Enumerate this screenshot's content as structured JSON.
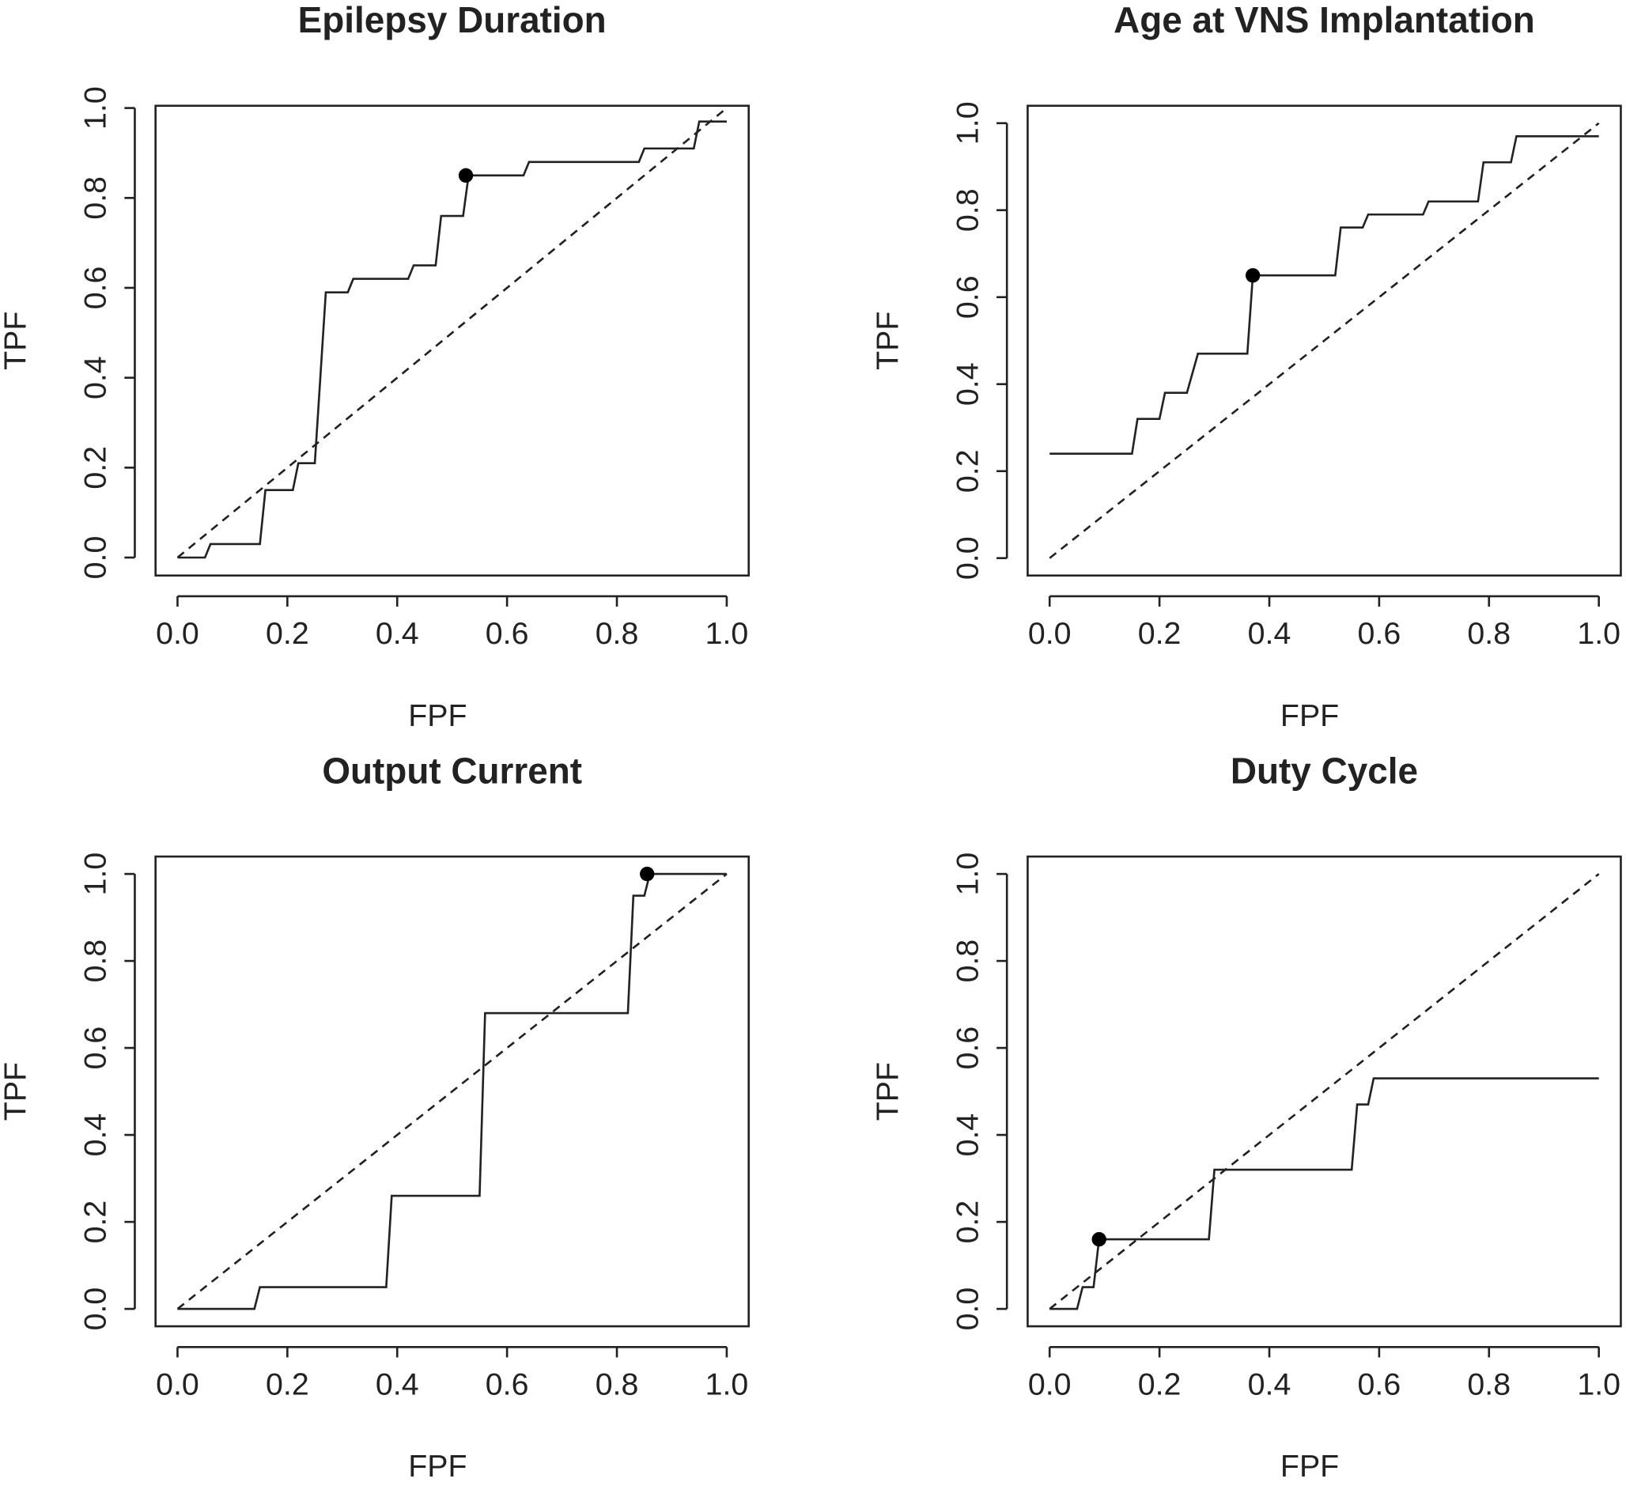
{
  "chart_data": [
    {
      "type": "line",
      "title": "Epilepsy Duration",
      "x_label": "FPF",
      "y_label": "TPF",
      "x": [
        0,
        0.05,
        0.06,
        0.15,
        0.16,
        0.21,
        0.22,
        0.25,
        0.27,
        0.31,
        0.32,
        0.42,
        0.43,
        0.47,
        0.48,
        0.52,
        0.53,
        0.63,
        0.64,
        0.84,
        0.85,
        0.94,
        0.95,
        1.0
      ],
      "values": [
        0,
        0,
        0.03,
        0.03,
        0.15,
        0.15,
        0.21,
        0.21,
        0.59,
        0.59,
        0.62,
        0.62,
        0.65,
        0.65,
        0.76,
        0.76,
        0.85,
        0.85,
        0.88,
        0.88,
        0.91,
        0.91,
        0.97,
        0.97
      ],
      "point": {
        "x": 0.525,
        "y": 0.85
      },
      "diagonal_x": [
        0,
        1
      ],
      "diagonal_y": [
        0,
        1
      ],
      "xlim": [
        -0.04,
        1.04
      ],
      "ylim": [
        -0.04,
        1.005
      ],
      "xticks": [
        {
          "value": 0,
          "label": "0.0"
        },
        {
          "value": 0.2,
          "label": "0.2"
        },
        {
          "value": 0.4,
          "label": "0.4"
        },
        {
          "value": 0.6,
          "label": "0.6"
        },
        {
          "value": 0.8,
          "label": "0.8"
        },
        {
          "value": 1,
          "label": "1.0"
        }
      ],
      "yticks": [
        {
          "value": 0,
          "label": "0.0"
        },
        {
          "value": 0.2,
          "label": "0.2"
        },
        {
          "value": 0.4,
          "label": "0.4"
        },
        {
          "value": 0.6,
          "label": "0.6"
        },
        {
          "value": 0.8,
          "label": "0.8"
        },
        {
          "value": 1,
          "label": "1.0"
        }
      ],
      "color": "#000000"
    },
    {
      "type": "line",
      "title": "Age at VNS Implantation",
      "x_label": "FPF",
      "y_label": "TPF",
      "x": [
        0,
        0.15,
        0.16,
        0.2,
        0.21,
        0.25,
        0.27,
        0.36,
        0.37,
        0.52,
        0.53,
        0.57,
        0.58,
        0.68,
        0.69,
        0.78,
        0.79,
        0.84,
        0.85,
        1.0
      ],
      "values": [
        0.24,
        0.24,
        0.32,
        0.32,
        0.38,
        0.38,
        0.47,
        0.47,
        0.65,
        0.65,
        0.76,
        0.76,
        0.79,
        0.79,
        0.82,
        0.82,
        0.91,
        0.91,
        0.97,
        0.97
      ],
      "point": {
        "x": 0.37,
        "y": 0.65
      },
      "diagonal_x": [
        0,
        1
      ],
      "diagonal_y": [
        0,
        1
      ],
      "xlim": [
        -0.04,
        1.04
      ],
      "ylim": [
        -0.04,
        1.04
      ],
      "xticks": [
        {
          "value": 0,
          "label": "0.0"
        },
        {
          "value": 0.2,
          "label": "0.2"
        },
        {
          "value": 0.4,
          "label": "0.4"
        },
        {
          "value": 0.6,
          "label": "0.6"
        },
        {
          "value": 0.8,
          "label": "0.8"
        },
        {
          "value": 1,
          "label": "1.0"
        }
      ],
      "yticks": [
        {
          "value": 0,
          "label": "0.0"
        },
        {
          "value": 0.2,
          "label": "0.2"
        },
        {
          "value": 0.4,
          "label": "0.4"
        },
        {
          "value": 0.6,
          "label": "0.6"
        },
        {
          "value": 0.8,
          "label": "0.8"
        },
        {
          "value": 1,
          "label": "1.0"
        }
      ],
      "color": "#000000"
    },
    {
      "type": "line",
      "title": "Output Current",
      "x_label": "FPF",
      "y_label": "TPF",
      "x": [
        0,
        0.14,
        0.15,
        0.38,
        0.39,
        0.55,
        0.56,
        0.82,
        0.83,
        0.85,
        0.86,
        1.0
      ],
      "values": [
        0,
        0,
        0.05,
        0.05,
        0.26,
        0.26,
        0.68,
        0.68,
        0.95,
        0.95,
        1.0,
        1.0
      ],
      "point": {
        "x": 0.855,
        "y": 1.0
      },
      "diagonal_x": [
        0,
        1
      ],
      "diagonal_y": [
        0,
        1
      ],
      "xlim": [
        -0.04,
        1.04
      ],
      "ylim": [
        -0.04,
        1.04
      ],
      "xticks": [
        {
          "value": 0,
          "label": "0.0"
        },
        {
          "value": 0.2,
          "label": "0.2"
        },
        {
          "value": 0.4,
          "label": "0.4"
        },
        {
          "value": 0.6,
          "label": "0.6"
        },
        {
          "value": 0.8,
          "label": "0.8"
        },
        {
          "value": 1,
          "label": "1.0"
        }
      ],
      "yticks": [
        {
          "value": 0,
          "label": "0.0"
        },
        {
          "value": 0.2,
          "label": "0.2"
        },
        {
          "value": 0.4,
          "label": "0.4"
        },
        {
          "value": 0.6,
          "label": "0.6"
        },
        {
          "value": 0.8,
          "label": "0.8"
        },
        {
          "value": 1,
          "label": "1.0"
        }
      ],
      "color": "#000000"
    },
    {
      "type": "line",
      "title": "Duty Cycle",
      "x_label": "FPF",
      "y_label": "TPF",
      "x": [
        0,
        0.05,
        0.06,
        0.08,
        0.09,
        0.29,
        0.3,
        0.55,
        0.56,
        0.58,
        0.59,
        1.0
      ],
      "values": [
        0,
        0,
        0.05,
        0.05,
        0.16,
        0.16,
        0.32,
        0.32,
        0.47,
        0.47,
        0.53,
        0.53
      ],
      "point": {
        "x": 0.09,
        "y": 0.16
      },
      "diagonal_x": [
        0,
        1
      ],
      "diagonal_y": [
        0,
        1
      ],
      "xlim": [
        -0.04,
        1.04
      ],
      "ylim": [
        -0.04,
        1.04
      ],
      "xticks": [
        {
          "value": 0,
          "label": "0.0"
        },
        {
          "value": 0.2,
          "label": "0.2"
        },
        {
          "value": 0.4,
          "label": "0.4"
        },
        {
          "value": 0.6,
          "label": "0.6"
        },
        {
          "value": 0.8,
          "label": "0.8"
        },
        {
          "value": 1,
          "label": "1.0"
        }
      ],
      "yticks": [
        {
          "value": 0,
          "label": "0.0"
        },
        {
          "value": 0.2,
          "label": "0.2"
        },
        {
          "value": 0.4,
          "label": "0.4"
        },
        {
          "value": 0.6,
          "label": "0.6"
        },
        {
          "value": 0.8,
          "label": "0.8"
        },
        {
          "value": 1,
          "label": "1.0"
        }
      ],
      "color": "#000000"
    }
  ]
}
